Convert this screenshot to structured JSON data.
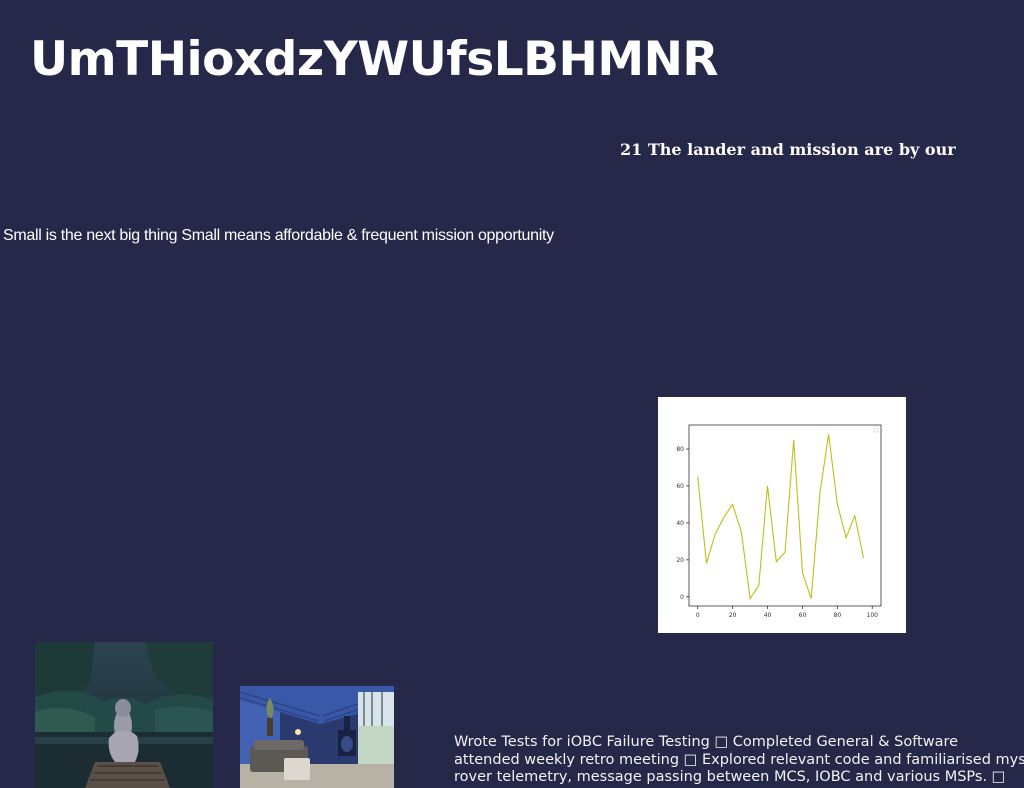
{
  "page": {
    "title": "UmTHioxdzYWUfsLBHMNR",
    "subheading": "21 The lander and mission are by our",
    "tagline": "Small is the next big thing Small means affordable & frequent mission opportunity",
    "notes_lines": [
      "Wrote Tests for iOBC Failure Testing □ Completed General & Software",
      "attended weekly retro meeting □ Explored relevant code and familiarised myself",
      "rover telemetry, message passing between MCS, IOBC and various MSPs. □"
    ]
  },
  "colors": {
    "background": "#252848",
    "line": "#bfbf1a",
    "chart_background": "#ffffff"
  },
  "images": {
    "forest": "photo of a hooded person sitting on a wooden dock by a forest lake",
    "cabin": "photo of a blue wooden cabin interior with a fireplace and windows"
  },
  "chart_data": {
    "type": "line",
    "x": [
      0,
      5,
      10,
      15,
      20,
      25,
      30,
      35,
      40,
      45,
      50,
      55,
      60,
      65,
      70,
      75,
      80,
      85,
      90,
      95,
      100
    ],
    "series": [
      {
        "values": [
          65,
          18,
          34,
          43,
          50,
          35,
          -1,
          6,
          60,
          19,
          24,
          85,
          13,
          -1,
          56,
          88,
          50,
          32,
          44,
          21,
          null
        ]
      }
    ],
    "x_ticks": [
      0,
      20,
      40,
      60,
      80,
      100
    ],
    "y_ticks": [
      0,
      20,
      40,
      60,
      80
    ],
    "xlim": [
      -5,
      105
    ],
    "ylim": [
      -5,
      93
    ],
    "grid": false,
    "legend": "top-right, empty"
  }
}
